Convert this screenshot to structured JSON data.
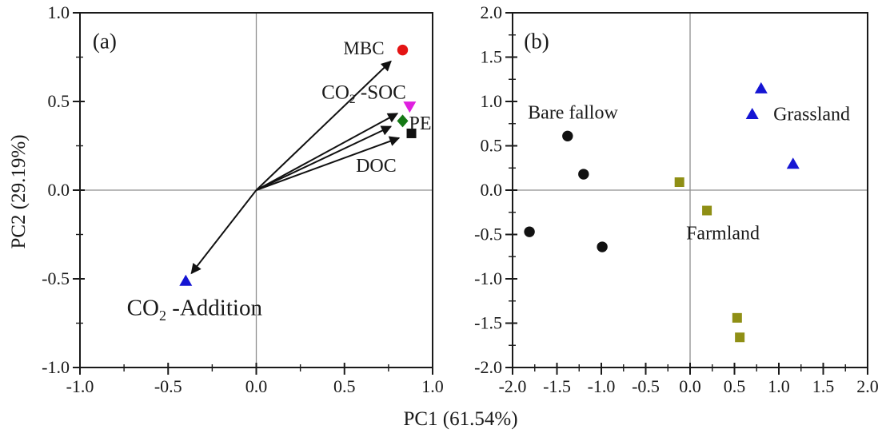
{
  "figure": {
    "xlabel": "PC1 (61.54%)",
    "background": "#ffffff",
    "frame_color": "#1a1a1a",
    "crosshair_color": "#8f8f8f",
    "text_color": "#1a1a1a"
  },
  "chart_data": [
    {
      "panel": "a",
      "type": "scatter",
      "tag": "(a)",
      "ylabel": "PC2 (29.19%)",
      "xlim": [
        -1.0,
        1.0
      ],
      "ylim": [
        -1.0,
        1.0
      ],
      "xticks": [
        -1.0,
        -0.5,
        0.0,
        0.5,
        1.0
      ],
      "yticks": [
        -1.0,
        -0.5,
        0.0,
        0.5,
        1.0
      ],
      "minor_step": 0.25,
      "crosshair_at_zero": true,
      "legend": "none",
      "series": [
        {
          "name": "MBC",
          "marker": "circle",
          "color": "#e41414",
          "arrow_from_origin": true,
          "points": [
            [
              0.83,
              0.79
            ]
          ]
        },
        {
          "name": "CO2-SOC",
          "marker": "triangle-down",
          "color": "#df1fdf",
          "arrow_from_origin": true,
          "points": [
            [
              0.87,
              0.47
            ]
          ]
        },
        {
          "name": "PE",
          "marker": "diamond",
          "color": "#157815",
          "arrow_from_origin": true,
          "points": [
            [
              0.83,
              0.39
            ]
          ]
        },
        {
          "name": "DOC",
          "marker": "square",
          "color": "#111111",
          "arrow_from_origin": true,
          "points": [
            [
              0.88,
              0.32
            ]
          ]
        },
        {
          "name": "CO2-Addition",
          "marker": "triangle-up",
          "color": "#1515d3",
          "arrow_from_origin": true,
          "points": [
            [
              -0.4,
              -0.51
            ]
          ]
        }
      ],
      "annotations": [
        {
          "name": "panel-tag-a",
          "segments": [
            {
              "t": "(a)"
            }
          ],
          "x": -0.86,
          "y": 0.84,
          "size": 27
        },
        {
          "name": "label-mbc",
          "segments": [
            {
              "t": "MBC"
            }
          ],
          "x": 0.61,
          "y": 0.8,
          "size": 23
        },
        {
          "name": "label-co2-soc",
          "segments": [
            {
              "t": "CO"
            },
            {
              "t": "2",
              "sub": true
            },
            {
              "t": " -SOC"
            }
          ],
          "x": 0.61,
          "y": 0.555,
          "size": 25
        },
        {
          "name": "label-pe",
          "segments": [
            {
              "t": "PE"
            }
          ],
          "x": 0.93,
          "y": 0.38,
          "size": 24
        },
        {
          "name": "label-doc",
          "segments": [
            {
              "t": "DOC"
            }
          ],
          "x": 0.68,
          "y": 0.14,
          "size": 24
        },
        {
          "name": "label-co2-addition",
          "segments": [
            {
              "t": "CO"
            },
            {
              "t": "2",
              "sub": true
            },
            {
              "t": " -Addition"
            }
          ],
          "x": -0.35,
          "y": -0.66,
          "size": 29
        }
      ]
    },
    {
      "panel": "b",
      "type": "scatter",
      "tag": "(b)",
      "ylabel": "",
      "xlim": [
        -2.0,
        2.0
      ],
      "ylim": [
        -2.0,
        2.0
      ],
      "xticks": [
        -2.0,
        -1.5,
        -1.0,
        -0.5,
        0.0,
        0.5,
        1.0,
        1.5,
        2.0
      ],
      "yticks": [
        -2.0,
        -1.5,
        -1.0,
        -0.5,
        0.0,
        0.5,
        1.0,
        1.5,
        2.0
      ],
      "minor_step": 0.25,
      "crosshair_at_zero": true,
      "legend": "none",
      "series": [
        {
          "name": "Bare fallow",
          "marker": "circle",
          "color": "#111111",
          "arrow_from_origin": false,
          "points": [
            [
              -1.38,
              0.61
            ],
            [
              -1.2,
              0.18
            ],
            [
              -1.81,
              -0.47
            ],
            [
              -0.99,
              -0.64
            ]
          ]
        },
        {
          "name": "Grassland",
          "marker": "triangle-up",
          "color": "#1515d3",
          "arrow_from_origin": false,
          "points": [
            [
              0.8,
              1.15
            ],
            [
              0.7,
              0.86
            ],
            [
              1.16,
              0.3
            ]
          ]
        },
        {
          "name": "Farmland",
          "marker": "square",
          "color": "#8f8f15",
          "arrow_from_origin": false,
          "points": [
            [
              -0.12,
              0.09
            ],
            [
              0.19,
              -0.23
            ],
            [
              0.53,
              -1.44
            ],
            [
              0.56,
              -1.66
            ]
          ]
        }
      ],
      "annotations": [
        {
          "name": "panel-tag-b",
          "segments": [
            {
              "t": "(b)"
            }
          ],
          "x": -1.73,
          "y": 1.68,
          "size": 27
        },
        {
          "name": "label-bare-fallow",
          "segments": [
            {
              "t": "Bare fallow"
            }
          ],
          "x": -1.32,
          "y": 0.88,
          "size": 24
        },
        {
          "name": "label-grassland",
          "segments": [
            {
              "t": "Grassland"
            }
          ],
          "x": 1.37,
          "y": 0.86,
          "size": 24
        },
        {
          "name": "label-farmland",
          "segments": [
            {
              "t": "Farmland"
            }
          ],
          "x": 0.37,
          "y": -0.48,
          "size": 24
        }
      ]
    }
  ]
}
